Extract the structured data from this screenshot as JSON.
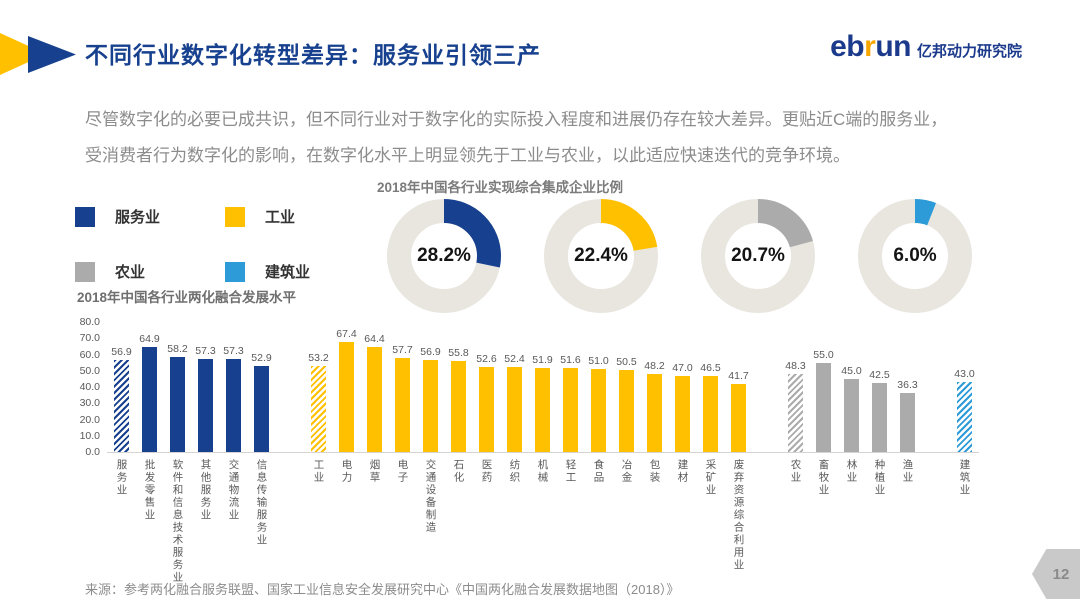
{
  "header": {
    "title": "不同行业数字化转型差异：服务业引领三产",
    "logo": {
      "part1": "eb",
      "part2": "r",
      "part3": "un",
      "suffix": "亿邦动力研究院"
    }
  },
  "intro": {
    "line1": "尽管数字化的必要已成共识，但不同行业对于数字化的实际投入程度和进展仍存在较大差异。更贴近C端的服务业，",
    "line2": "受消费者行为数字化的影响，在数字化水平上明显领先于工业与农业，以此适应快速迭代的竞争环境。"
  },
  "legend": {
    "items": [
      {
        "label": "服务业",
        "color": "#17418F"
      },
      {
        "label": "工业",
        "color": "#FFC000"
      },
      {
        "label": "农业",
        "color": "#ABABAB"
      },
      {
        "label": "建筑业",
        "color": "#2D9BD8"
      }
    ]
  },
  "chart_data": [
    {
      "type": "pie",
      "title": "2018年中国各行业实现综合集成企业比例",
      "style": "donut",
      "track_color": "#E9E6E0",
      "donuts": [
        {
          "label": "服务业",
          "value": 28.2,
          "display": "28.2%",
          "color": "#17418F"
        },
        {
          "label": "工业",
          "value": 22.4,
          "display": "22.4%",
          "color": "#FFC000"
        },
        {
          "label": "农业",
          "value": 20.7,
          "display": "20.7%",
          "color": "#ABABAB"
        },
        {
          "label": "建筑业",
          "value": 6.0,
          "display": "6.0%",
          "color": "#2D9BD8"
        }
      ]
    },
    {
      "type": "bar",
      "title": "2018年中国各行业两化融合发展水平",
      "ylim": [
        0,
        80
      ],
      "yticks": [
        "80.0",
        "70.0",
        "60.0",
        "50.0",
        "40.0",
        "30.0",
        "20.0",
        "10.0",
        "0.0"
      ],
      "grid": false,
      "note": "first bar of each group is hatched (industry aggregate)",
      "groups": [
        {
          "name": "服务业",
          "color": "#17418F",
          "bars": [
            {
              "label": "服务业",
              "value": 56.9,
              "hatched": true
            },
            {
              "label": "批发零售业",
              "value": 64.9
            },
            {
              "label": "软件和信息技术服务业",
              "value": 58.2
            },
            {
              "label": "其他服务业",
              "value": 57.3
            },
            {
              "label": "交通物流业",
              "value": 57.3
            },
            {
              "label": "信息传输服务业",
              "value": 52.9
            }
          ]
        },
        {
          "name": "工业",
          "color": "#FFC000",
          "bars": [
            {
              "label": "工业",
              "value": 53.2,
              "hatched": true
            },
            {
              "label": "电力",
              "value": 67.4
            },
            {
              "label": "烟草",
              "value": 64.4
            },
            {
              "label": "电子",
              "value": 57.7
            },
            {
              "label": "交通设备制造",
              "value": 56.9
            },
            {
              "label": "石化",
              "value": 55.8
            },
            {
              "label": "医药",
              "value": 52.6
            },
            {
              "label": "纺织",
              "value": 52.4
            },
            {
              "label": "机械",
              "value": 51.9
            },
            {
              "label": "轻工",
              "value": 51.6
            },
            {
              "label": "食品",
              "value": 51.0
            },
            {
              "label": "冶金",
              "value": 50.5
            },
            {
              "label": "包装",
              "value": 48.2
            },
            {
              "label": "建材",
              "value": 47.0
            },
            {
              "label": "采矿业",
              "value": 46.5
            },
            {
              "label": "废弃资源综合利用业",
              "value": 41.7
            }
          ]
        },
        {
          "name": "农业",
          "color": "#ABABAB",
          "bars": [
            {
              "label": "农业",
              "value": 48.3,
              "hatched": true
            },
            {
              "label": "畜牧业",
              "value": 55.0
            },
            {
              "label": "林业",
              "value": 45.0
            },
            {
              "label": "种植业",
              "value": 42.5
            },
            {
              "label": "渔业",
              "value": 36.3
            }
          ]
        },
        {
          "name": "建筑业",
          "color": "#2D9BD8",
          "bars": [
            {
              "label": "建筑业",
              "value": 43.0,
              "hatched": true
            }
          ]
        }
      ]
    }
  ],
  "footer": {
    "source": "来源：参考两化融合服务联盟、国家工业信息安全发展研究中心《中国两化融合发展数据地图（2018）》",
    "page": "12"
  }
}
